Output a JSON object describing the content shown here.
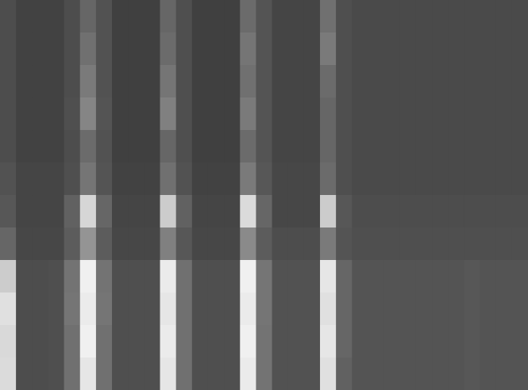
{
  "chart_data": {
    "type": "heatmap",
    "tick_labels": false,
    "xlim": [
      0,
      33
    ],
    "ylim": [
      0,
      12
    ],
    "zlim": [
      0,
      100
    ],
    "cells": [
      [
        30,
        26,
        26,
        26,
        30,
        40,
        32,
        25,
        25,
        25,
        40,
        31,
        25,
        25,
        25,
        42,
        33,
        27,
        27,
        27,
        44,
        31,
        29,
        29,
        29,
        29,
        29,
        29,
        29,
        29,
        29,
        29,
        29
      ],
      [
        30,
        26,
        26,
        26,
        30,
        44,
        32,
        25,
        25,
        25,
        42,
        31,
        25,
        25,
        25,
        46,
        33,
        27,
        27,
        27,
        48,
        31,
        29,
        29,
        29,
        29,
        29,
        29,
        29,
        29,
        29,
        29,
        29
      ],
      [
        30,
        26,
        26,
        26,
        30,
        48,
        32,
        25,
        25,
        25,
        46,
        31,
        25,
        25,
        25,
        44,
        33,
        27,
        27,
        27,
        42,
        31,
        29,
        29,
        29,
        29,
        29,
        29,
        29,
        29,
        29,
        29,
        29
      ],
      [
        30,
        26,
        26,
        26,
        31,
        52,
        33,
        25,
        25,
        25,
        50,
        31,
        25,
        25,
        25,
        48,
        33,
        27,
        27,
        27,
        40,
        31,
        29,
        29,
        29,
        29,
        29,
        29,
        29,
        29,
        29,
        29,
        29
      ],
      [
        30,
        26,
        26,
        26,
        30,
        42,
        32,
        25,
        25,
        25,
        40,
        31,
        25,
        25,
        25,
        42,
        33,
        27,
        27,
        27,
        40,
        31,
        29,
        29,
        29,
        29,
        29,
        29,
        29,
        29,
        29,
        29,
        29
      ],
      [
        32,
        27,
        27,
        27,
        31,
        46,
        33,
        26,
        26,
        26,
        44,
        32,
        26,
        26,
        26,
        48,
        34,
        28,
        28,
        28,
        42,
        31,
        29,
        29,
        29,
        29,
        29,
        29,
        29,
        29,
        29,
        29,
        29
      ],
      [
        34,
        27,
        27,
        27,
        38,
        84,
        40,
        27,
        27,
        27,
        80,
        38,
        27,
        27,
        27,
        86,
        40,
        28,
        28,
        28,
        80,
        34,
        30,
        30,
        30,
        30,
        30,
        30,
        30,
        30,
        30,
        30,
        30
      ],
      [
        40,
        28,
        28,
        28,
        36,
        58,
        36,
        28,
        28,
        28,
        50,
        34,
        28,
        28,
        28,
        54,
        36,
        30,
        30,
        30,
        48,
        33,
        31,
        31,
        31,
        31,
        31,
        31,
        31,
        31,
        31,
        31,
        31
      ],
      [
        80,
        30,
        30,
        31,
        45,
        94,
        45,
        31,
        31,
        31,
        92,
        44,
        31,
        31,
        31,
        94,
        46,
        32,
        32,
        32,
        90,
        40,
        33,
        33,
        33,
        33,
        33,
        33,
        33,
        34,
        33,
        33,
        33
      ],
      [
        88,
        30,
        30,
        31,
        46,
        92,
        46,
        31,
        31,
        31,
        90,
        44,
        31,
        31,
        31,
        92,
        46,
        32,
        32,
        32,
        88,
        40,
        33,
        33,
        33,
        33,
        33,
        33,
        33,
        34,
        33,
        33,
        33
      ],
      [
        85,
        30,
        30,
        31,
        44,
        94,
        44,
        31,
        31,
        31,
        92,
        44,
        31,
        31,
        31,
        94,
        45,
        32,
        32,
        32,
        90,
        40,
        33,
        33,
        33,
        33,
        33,
        33,
        33,
        34,
        33,
        33,
        33
      ],
      [
        86,
        30,
        30,
        31,
        44,
        90,
        44,
        31,
        31,
        31,
        90,
        44,
        31,
        31,
        31,
        92,
        45,
        32,
        32,
        32,
        88,
        38,
        33,
        33,
        33,
        33,
        33,
        33,
        33,
        34,
        33,
        33,
        33
      ]
    ]
  }
}
